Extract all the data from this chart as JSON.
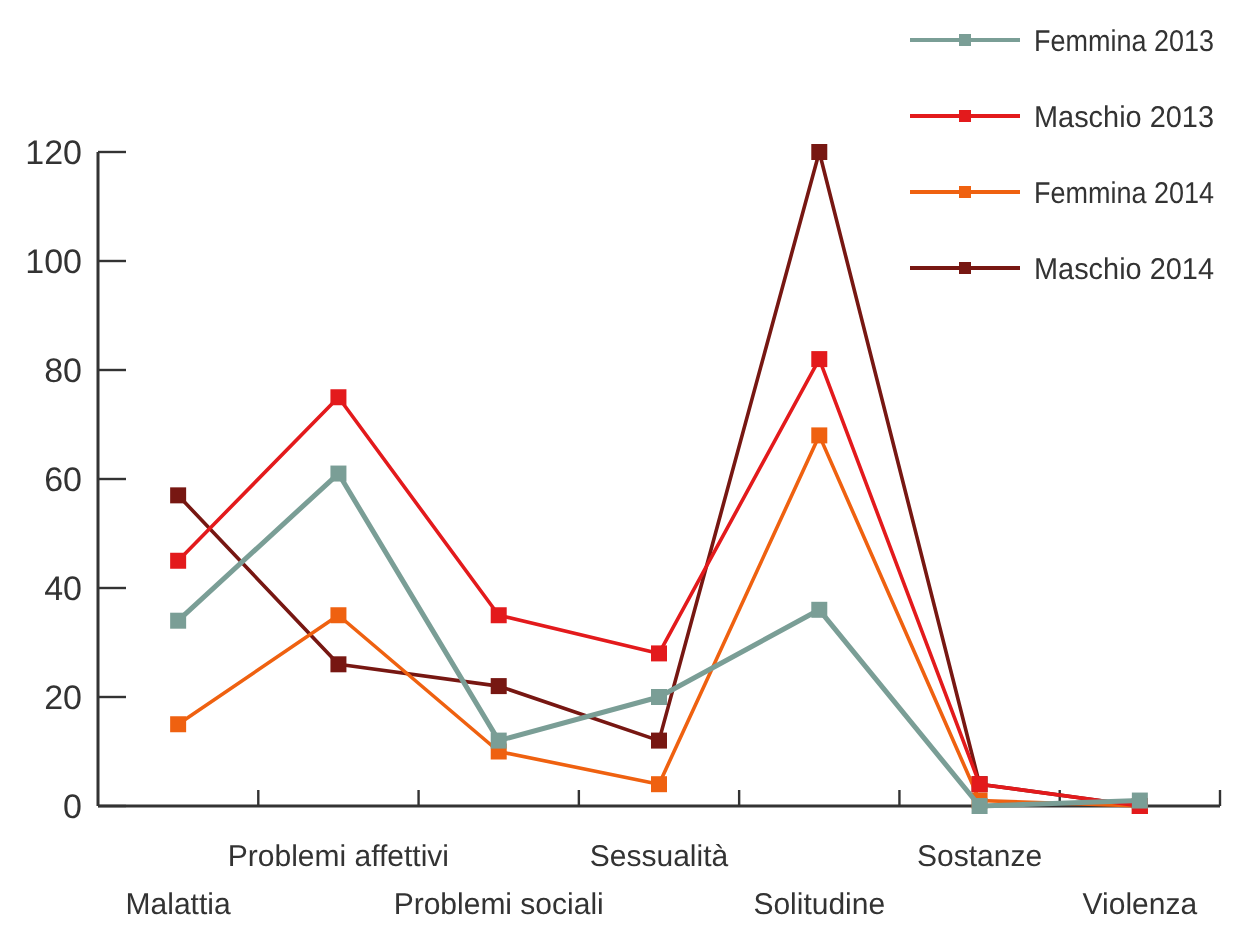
{
  "chart_data": {
    "type": "line",
    "categories": [
      "Malattia",
      "Problemi affettivi",
      "Problemi sociali",
      "Sessualità",
      "Solitudine",
      "Sostanze",
      "Violenza"
    ],
    "series": [
      {
        "name": "Femmina 2013",
        "color": "#7a9e96",
        "values": [
          34,
          61,
          12,
          20,
          36,
          0,
          1
        ]
      },
      {
        "name": "Maschio 2013",
        "color": "#e31a1c",
        "values": [
          45,
          75,
          35,
          28,
          82,
          4,
          0
        ]
      },
      {
        "name": "Femmina 2014",
        "color": "#ef6110",
        "values": [
          15,
          35,
          10,
          4,
          68,
          1,
          0
        ]
      },
      {
        "name": "Maschio 2014",
        "color": "#771712",
        "values": [
          57,
          26,
          22,
          12,
          120,
          4,
          0
        ]
      }
    ],
    "ylim": [
      0,
      120
    ],
    "yticks": [
      0,
      20,
      40,
      60,
      80,
      100,
      120
    ],
    "grid": false,
    "legend": "top right",
    "marker": "square",
    "line_style": "solid"
  }
}
